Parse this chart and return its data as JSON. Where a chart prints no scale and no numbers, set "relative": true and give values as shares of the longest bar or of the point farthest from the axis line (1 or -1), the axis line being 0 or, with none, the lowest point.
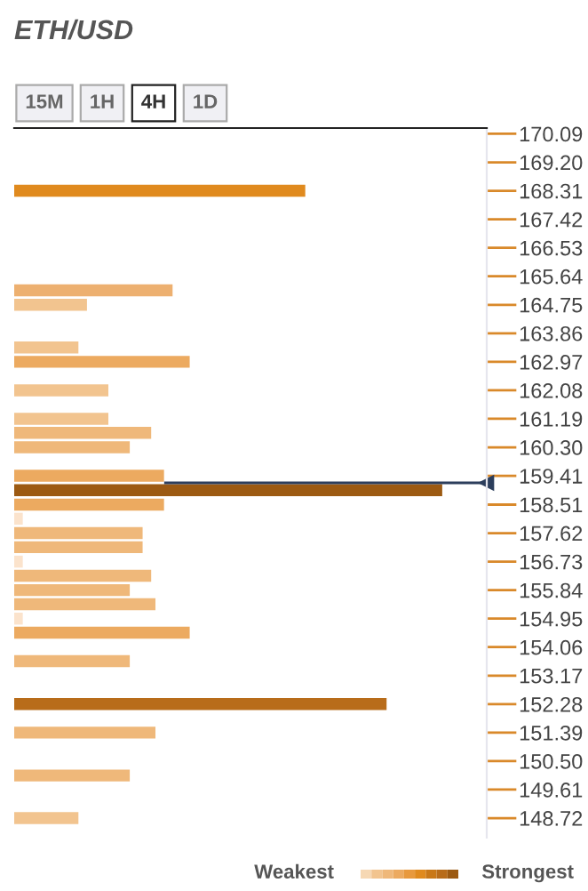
{
  "chart_data": {
    "type": "bar",
    "orientation": "horizontal",
    "relative": true,
    "title": "ETH/USD",
    "x": [
      168.31,
      165.2,
      164.75,
      163.42,
      162.97,
      162.08,
      161.19,
      160.75,
      160.3,
      159.41,
      158.96,
      158.51,
      158.07,
      157.62,
      157.18,
      156.73,
      156.29,
      155.84,
      155.4,
      154.95,
      154.51,
      153.62,
      152.28,
      151.39,
      150.05,
      148.72
    ],
    "values": [
      0.68,
      0.37,
      0.17,
      0.15,
      0.41,
      0.22,
      0.22,
      0.32,
      0.27,
      0.35,
      1,
      0.35,
      0.02,
      0.3,
      0.3,
      0.02,
      0.32,
      0.27,
      0.33,
      0.02,
      0.41,
      0.27,
      0.87,
      0.33,
      0.27,
      0.15
    ],
    "colors": [
      "#e08a1e",
      "#edb070",
      "#f2c48f",
      "#f2c48f",
      "#ecaa60",
      "#f2c48f",
      "#f2c48f",
      "#efb87a",
      "#efb87a",
      "#ecaa60",
      "#9c5a12",
      "#ecaa60",
      "#fbe3cc",
      "#efb87a",
      "#efb87a",
      "#fbe3cc",
      "#efb87a",
      "#efb87a",
      "#efb87a",
      "#fbe3cc",
      "#ecaa60",
      "#efb87a",
      "#b86c1a",
      "#efb87a",
      "#efb87a",
      "#f2c48f"
    ],
    "ylim": [
      148.11,
      170.27
    ],
    "yticks": [
      170.09,
      {
        "value": 169.2,
        "label": "169.20"
      },
      168.31,
      167.42,
      166.53,
      165.64,
      164.75,
      163.86,
      162.97,
      162.08,
      161.19,
      {
        "value": 160.3,
        "label": "160.30"
      },
      159.41,
      158.51,
      157.62,
      156.73,
      155.84,
      154.95,
      154.06,
      153.17,
      152.28,
      151.39,
      {
        "value": 150.5,
        "label": "150.50"
      },
      149.61,
      148.72
    ],
    "ref_lines": [
      {
        "axis": "y",
        "value": 159.19,
        "color": "#2c3e5c"
      }
    ],
    "annotations": [
      "15M",
      "1H",
      "4H",
      "1D",
      "Weakest",
      "Strongest"
    ],
    "grid": false
  }
}
